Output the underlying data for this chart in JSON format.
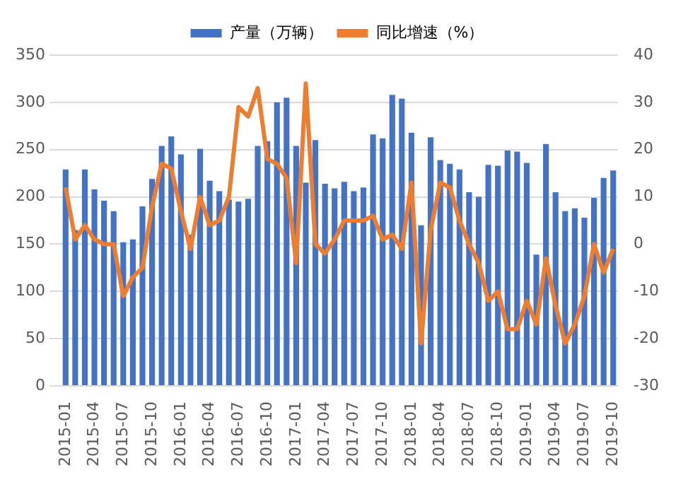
{
  "chart_data": {
    "type": "bar",
    "categories": [
      "2015-01",
      null,
      null,
      "2015-04",
      null,
      null,
      "2015-07",
      null,
      null,
      "2015-10",
      null,
      null,
      "2016-01",
      null,
      null,
      "2016-04",
      null,
      null,
      "2016-07",
      null,
      null,
      "2016-10",
      null,
      null,
      "2017-01",
      null,
      null,
      "2017-04",
      null,
      null,
      "2017-07",
      null,
      null,
      "2017-10",
      null,
      null,
      "2018-01",
      null,
      null,
      "2018-04",
      null,
      null,
      "2018-07",
      null,
      null,
      "2018-10",
      null,
      null,
      "2019-01",
      null,
      null,
      "2019-04",
      null,
      null,
      "2019-07",
      null,
      null,
      "2019-10"
    ],
    "series": [
      {
        "name": "产量（万辆）",
        "color": "#4472c4",
        "values": [
          229,
          165,
          229,
          208,
          196,
          185,
          152,
          155,
          190,
          219,
          254,
          264,
          245,
          160,
          251,
          217,
          206,
          197,
          195,
          198,
          254,
          259,
          300,
          305,
          254,
          215,
          260,
          214,
          209,
          216,
          206,
          210,
          266,
          262,
          308,
          304,
          268,
          170,
          263,
          239,
          235,
          229,
          205,
          200,
          234,
          233,
          249,
          248,
          236,
          139,
          256,
          205,
          185,
          188,
          178,
          199,
          220,
          228
        ]
      },
      {
        "name": "同比增速（%）",
        "type": "line",
        "axis": "y2",
        "color": "#ed7d31",
        "values": [
          12,
          1,
          4,
          1,
          0,
          0,
          -11,
          -7,
          -5,
          8,
          17,
          16,
          7,
          -1,
          10,
          4,
          5,
          10,
          29,
          27,
          33,
          18,
          17,
          14,
          -4,
          34,
          0,
          -2,
          1,
          5,
          5,
          5,
          6,
          1,
          2,
          -1,
          13,
          -21,
          3,
          13,
          12,
          5,
          0,
          -4,
          -12,
          -10,
          -18,
          -18,
          -12,
          -17,
          -3,
          -13,
          -21,
          -17,
          -11,
          0,
          -6,
          -1
        ]
      }
    ],
    "ylim": [
      0,
      350
    ],
    "yticks": [
      0,
      50,
      100,
      150,
      200,
      250,
      300,
      350
    ],
    "y2lim": [
      -30,
      40
    ],
    "y2ticks": [
      -30,
      -20,
      -10,
      0,
      10,
      20,
      30,
      40
    ],
    "grid": "y",
    "legend": "top",
    "marker": "none"
  }
}
